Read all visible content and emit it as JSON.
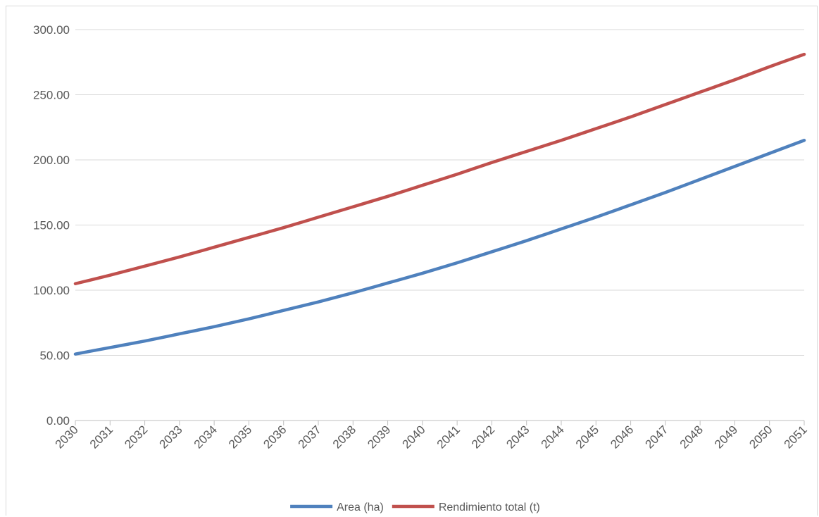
{
  "chart_data": {
    "type": "line",
    "title": "",
    "xlabel": "",
    "ylabel": "",
    "categories": [
      "2030",
      "2031",
      "2032",
      "2033",
      "2034",
      "2035",
      "2036",
      "2037",
      "2038",
      "2039",
      "2040",
      "2041",
      "2042",
      "2043",
      "2044",
      "2045",
      "2046",
      "2047",
      "2048",
      "2049",
      "2050",
      "2051"
    ],
    "ylim": [
      0,
      300
    ],
    "yticks": [
      "0.00",
      "50.00",
      "100.00",
      "150.00",
      "200.00",
      "250.00",
      "300.00"
    ],
    "grid": true,
    "legend_position": "bottom",
    "series": [
      {
        "name": "Area (ha)",
        "color": "#4f81bd",
        "values": [
          51,
          56,
          61,
          66.5,
          72,
          78,
          84.5,
          91,
          98,
          105.5,
          113,
          121,
          129.5,
          138,
          147,
          156,
          165.5,
          175,
          185,
          195,
          205,
          215
        ]
      },
      {
        "name": "Rendimiento total (t)",
        "color": "#c0504d",
        "values": [
          105,
          111.5,
          118.5,
          125.5,
          133,
          140.5,
          148,
          156,
          164,
          172,
          180.5,
          189,
          198,
          206.5,
          215,
          224,
          233,
          242.5,
          252,
          261.5,
          271.5,
          281
        ]
      }
    ]
  }
}
